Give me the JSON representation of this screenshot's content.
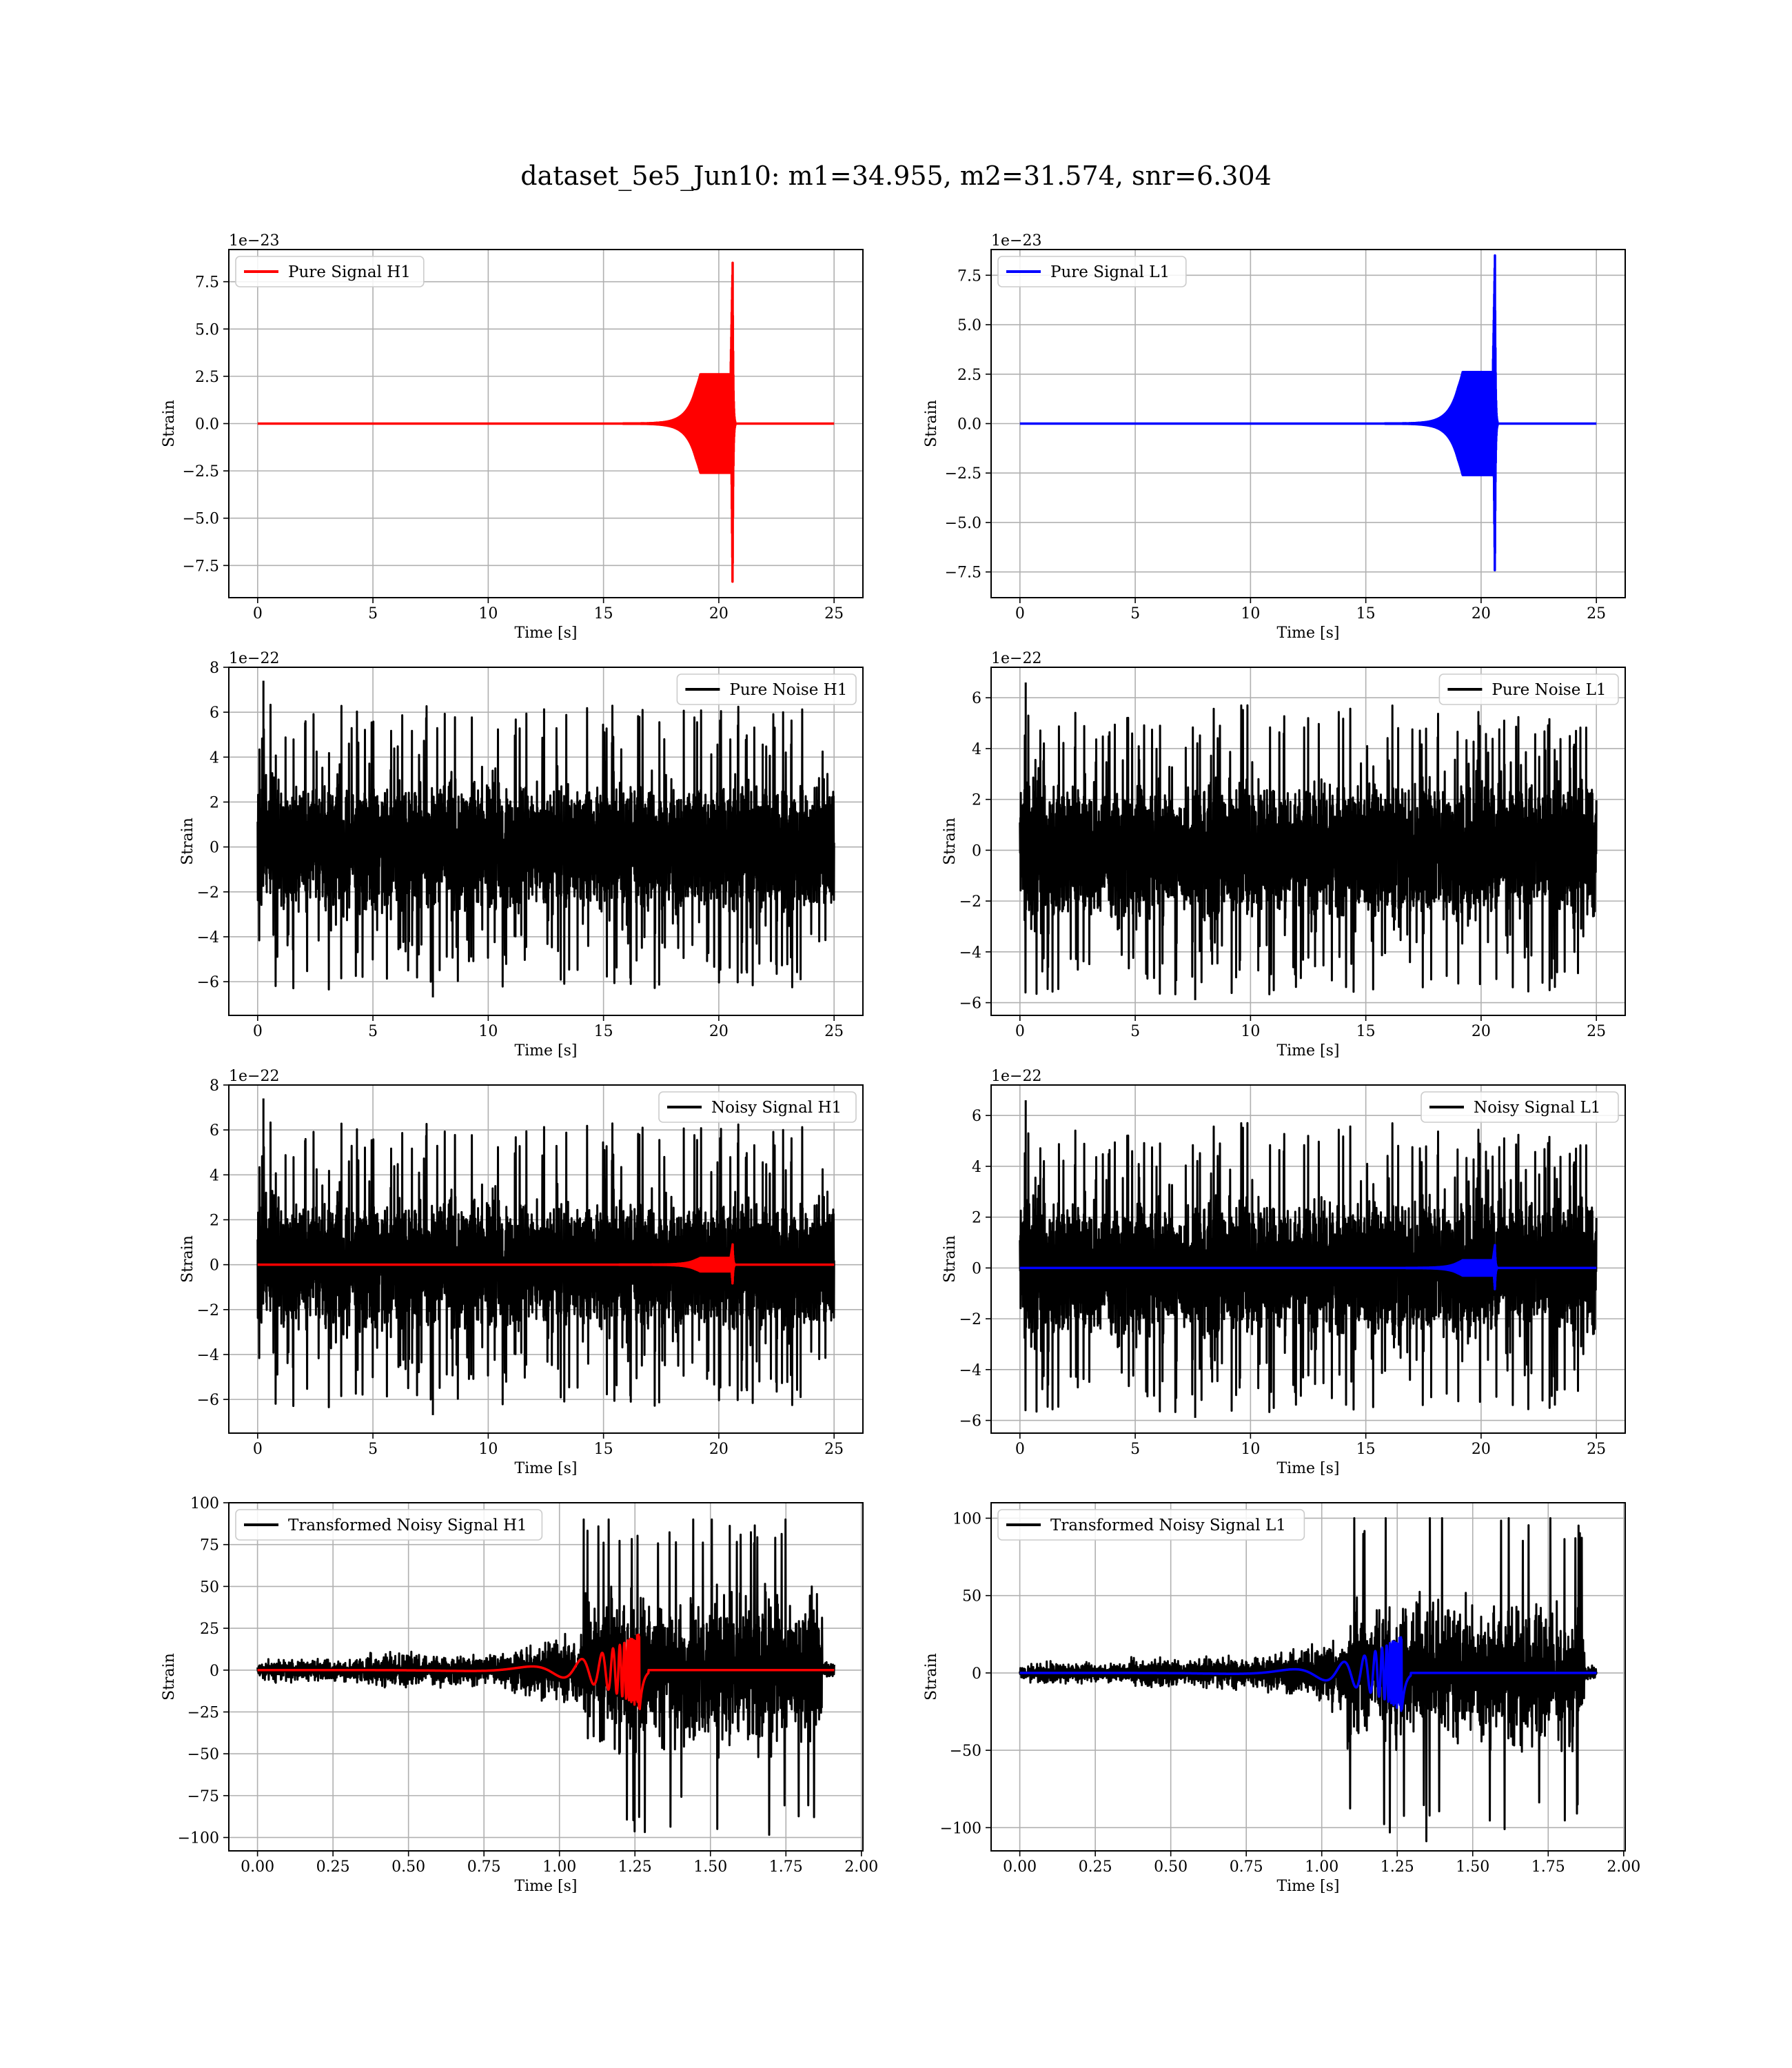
{
  "figure": {
    "title": "dataset_5e5_Jun10: m1=34.955, m2=31.574, snr=6.304"
  },
  "chart_data": [
    {
      "id": "signal_h1",
      "type": "line",
      "legend": "upper left",
      "xlabel": "Time [s]",
      "ylabel": "Strain",
      "offset_text": "1e−23",
      "xlim": [
        -1.25,
        26.25
      ],
      "ylim": [
        -9.2,
        9.2
      ],
      "xticks": [
        0,
        5,
        10,
        15,
        20,
        25
      ],
      "xtick_labels": [
        "0",
        "5",
        "10",
        "15",
        "20",
        "25"
      ],
      "yticks": [
        -7.5,
        -5.0,
        -2.5,
        0.0,
        2.5,
        5.0,
        7.5
      ],
      "ytick_labels": [
        "−7.5",
        "−5.0",
        "−2.5",
        "0.0",
        "2.5",
        "5.0",
        "7.5"
      ],
      "grid": true,
      "series": [
        {
          "name": "Pure Signal H1",
          "color": "#ff0000",
          "kind": "chirp",
          "t0": 0,
          "t1": 25,
          "tc": 20.6,
          "peak": 8.5,
          "trough": -9.0,
          "plateau": 2.6
        }
      ]
    },
    {
      "id": "signal_l1",
      "type": "line",
      "legend": "upper left",
      "xlabel": "Time [s]",
      "ylabel": "Strain",
      "offset_text": "1e−23",
      "xlim": [
        -1.25,
        26.25
      ],
      "ylim": [
        -8.8,
        8.8
      ],
      "xticks": [
        0,
        5,
        10,
        15,
        20,
        25
      ],
      "xtick_labels": [
        "0",
        "5",
        "10",
        "15",
        "20",
        "25"
      ],
      "yticks": [
        -7.5,
        -5.0,
        -2.5,
        0.0,
        2.5,
        5.0,
        7.5
      ],
      "ytick_labels": [
        "−7.5",
        "−5.0",
        "−2.5",
        "0.0",
        "2.5",
        "5.0",
        "7.5"
      ],
      "grid": true,
      "series": [
        {
          "name": "Pure Signal L1",
          "color": "#0000ff",
          "kind": "chirp",
          "t0": 0,
          "t1": 25,
          "tc": 20.6,
          "peak": 8.5,
          "trough": -8.0,
          "plateau": 2.6
        }
      ]
    },
    {
      "id": "noise_h1",
      "type": "line",
      "legend": "upper right",
      "xlabel": "Time [s]",
      "ylabel": "Strain",
      "offset_text": "1e−22",
      "xlim": [
        -1.25,
        26.25
      ],
      "ylim": [
        -7.5,
        8.0
      ],
      "xticks": [
        0,
        5,
        10,
        15,
        20,
        25
      ],
      "xtick_labels": [
        "0",
        "5",
        "10",
        "15",
        "20",
        "25"
      ],
      "yticks": [
        -6,
        -4,
        -2,
        0,
        2,
        4,
        6,
        8
      ],
      "ytick_labels": [
        "−6",
        "−4",
        "−2",
        "0",
        "2",
        "4",
        "6",
        "8"
      ],
      "grid": true,
      "series": [
        {
          "name": "Pure Noise H1",
          "color": "#000000",
          "kind": "noise",
          "t0": 0,
          "t1": 25,
          "max": 7.4,
          "min": -6.7,
          "band": 3.2,
          "seed": 11
        }
      ]
    },
    {
      "id": "noise_l1",
      "type": "line",
      "legend": "upper right",
      "xlabel": "Time [s]",
      "ylabel": "Strain",
      "offset_text": "1e−22",
      "xlim": [
        -1.25,
        26.25
      ],
      "ylim": [
        -6.5,
        7.2
      ],
      "xticks": [
        0,
        5,
        10,
        15,
        20,
        25
      ],
      "xtick_labels": [
        "0",
        "5",
        "10",
        "15",
        "20",
        "25"
      ],
      "yticks": [
        -6,
        -4,
        -2,
        0,
        2,
        4,
        6
      ],
      "ytick_labels": [
        "−6",
        "−4",
        "−2",
        "0",
        "2",
        "4",
        "6"
      ],
      "grid": true,
      "series": [
        {
          "name": "Pure Noise L1",
          "color": "#000000",
          "kind": "noise",
          "t0": 0,
          "t1": 25,
          "max": 6.6,
          "min": -5.9,
          "band": 3.0,
          "seed": 23
        }
      ]
    },
    {
      "id": "noisy_h1",
      "type": "line",
      "legend": "upper right",
      "xlabel": "Time [s]",
      "ylabel": "Strain",
      "offset_text": "1e−22",
      "xlim": [
        -1.25,
        26.25
      ],
      "ylim": [
        -7.5,
        8.0
      ],
      "xticks": [
        0,
        5,
        10,
        15,
        20,
        25
      ],
      "xtick_labels": [
        "0",
        "5",
        "10",
        "15",
        "20",
        "25"
      ],
      "yticks": [
        -6,
        -4,
        -2,
        0,
        2,
        4,
        6,
        8
      ],
      "ytick_labels": [
        "−6",
        "−4",
        "−2",
        "0",
        "2",
        "4",
        "6",
        "8"
      ],
      "grid": true,
      "series": [
        {
          "name": "Noisy Signal H1",
          "color": "#000000",
          "kind": "noise",
          "t0": 0,
          "t1": 25,
          "max": 7.4,
          "min": -6.7,
          "band": 3.2,
          "seed": 11
        },
        {
          "name": "",
          "color": "#ff0000",
          "kind": "chirp",
          "t0": 0,
          "t1": 25,
          "tc": 20.6,
          "peak": 0.9,
          "trough": -0.9,
          "plateau": 0.3
        }
      ]
    },
    {
      "id": "noisy_l1",
      "type": "line",
      "legend": "upper right",
      "xlabel": "Time [s]",
      "ylabel": "Strain",
      "offset_text": "1e−22",
      "xlim": [
        -1.25,
        26.25
      ],
      "ylim": [
        -6.5,
        7.2
      ],
      "xticks": [
        0,
        5,
        10,
        15,
        20,
        25
      ],
      "xtick_labels": [
        "0",
        "5",
        "10",
        "15",
        "20",
        "25"
      ],
      "yticks": [
        -6,
        -4,
        -2,
        0,
        2,
        4,
        6
      ],
      "ytick_labels": [
        "−6",
        "−4",
        "−2",
        "0",
        "2",
        "4",
        "6"
      ],
      "grid": true,
      "series": [
        {
          "name": "Noisy Signal L1",
          "color": "#000000",
          "kind": "noise",
          "t0": 0,
          "t1": 25,
          "max": 6.6,
          "min": -5.9,
          "band": 3.0,
          "seed": 23
        },
        {
          "name": "",
          "color": "#0000ff",
          "kind": "chirp",
          "t0": 0,
          "t1": 25,
          "tc": 20.6,
          "peak": 0.9,
          "trough": -0.9,
          "plateau": 0.3
        }
      ]
    },
    {
      "id": "transformed_h1",
      "type": "line",
      "legend": "upper left",
      "xlabel": "Time [s]",
      "ylabel": "Strain",
      "offset_text": "",
      "xlim": [
        -0.095,
        2.005
      ],
      "ylim": [
        -108,
        100
      ],
      "xticks": [
        0.0,
        0.25,
        0.5,
        0.75,
        1.0,
        1.25,
        1.5,
        1.75,
        2.0
      ],
      "xtick_labels": [
        "0.00",
        "0.25",
        "0.50",
        "0.75",
        "1.00",
        "1.25",
        "1.50",
        "1.75",
        "2.00"
      ],
      "yticks": [
        -100,
        -75,
        -50,
        -25,
        0,
        25,
        50,
        75,
        100
      ],
      "ytick_labels": [
        "−100",
        "−75",
        "−50",
        "−25",
        "0",
        "25",
        "50",
        "75",
        "100"
      ],
      "grid": true,
      "series": [
        {
          "name": "Transformed Noisy Signal H1",
          "color": "#000000",
          "kind": "tnoise",
          "t0": 0,
          "t1": 1.91,
          "max": 90,
          "min": -100,
          "seed": 37
        },
        {
          "name": "",
          "color": "#ff0000",
          "kind": "tchirp",
          "t0": 0,
          "t1": 1.91,
          "tc": 1.265,
          "peak": 23,
          "trough": -25
        }
      ]
    },
    {
      "id": "transformed_l1",
      "type": "line",
      "legend": "upper left",
      "xlabel": "Time [s]",
      "ylabel": "Strain",
      "offset_text": "",
      "xlim": [
        -0.095,
        2.005
      ],
      "ylim": [
        -115,
        110
      ],
      "xticks": [
        0.0,
        0.25,
        0.5,
        0.75,
        1.0,
        1.25,
        1.5,
        1.75,
        2.0
      ],
      "xtick_labels": [
        "0.00",
        "0.25",
        "0.50",
        "0.75",
        "1.00",
        "1.25",
        "1.50",
        "1.75",
        "2.00"
      ],
      "yticks": [
        -100,
        -50,
        0,
        50,
        100
      ],
      "ytick_labels": [
        "−100",
        "−50",
        "0",
        "50",
        "100"
      ],
      "grid": true,
      "series": [
        {
          "name": "Transformed Noisy Signal L1",
          "color": "#000000",
          "kind": "tnoise",
          "t0": 0,
          "t1": 1.91,
          "max": 100,
          "min": -109,
          "seed": 53
        },
        {
          "name": "",
          "color": "#0000ff",
          "kind": "tchirp",
          "t0": 0,
          "t1": 1.91,
          "tc": 1.265,
          "peak": 25,
          "trough": -25
        }
      ]
    }
  ]
}
